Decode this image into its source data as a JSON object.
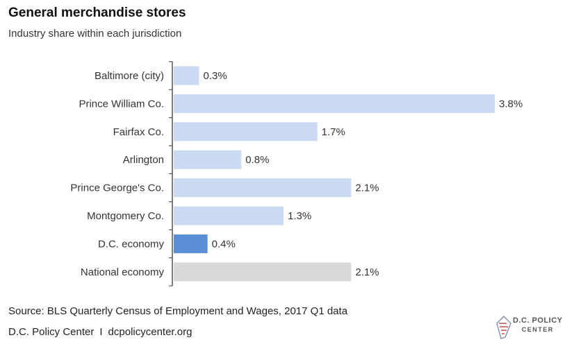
{
  "header": {
    "title": "General merchandise stores",
    "subtitle": "Industry share within each jurisdiction"
  },
  "chart_data": {
    "type": "bar",
    "orientation": "horizontal",
    "title": "General merchandise stores",
    "subtitle": "Industry share within each jurisdiction",
    "xlabel": "",
    "ylabel": "",
    "xlim": [
      0,
      3.8
    ],
    "grid": false,
    "categories": [
      "Baltimore (city)",
      "Prince William Co.",
      "Fairfax Co.",
      "Arlington",
      "Prince George's Co.",
      "Montgomery Co.",
      "D.C. economy",
      "National economy"
    ],
    "values": [
      0.3,
      3.8,
      1.7,
      0.8,
      2.1,
      1.3,
      0.4,
      2.1
    ],
    "value_labels": [
      "0.3%",
      "3.8%",
      "1.7%",
      "0.8%",
      "2.1%",
      "1.3%",
      "0.4%",
      "2.1%"
    ],
    "bar_colors": [
      "#c9daf2",
      "#c9daf2",
      "#c9daf2",
      "#c9daf2",
      "#c9daf2",
      "#c9daf2",
      "#5a8fd8",
      "#d9d9d9"
    ]
  },
  "footer": {
    "source": "Source: BLS Quarterly Census of Employment and Wages, 2017 Q1 data",
    "org": "D.C. Policy Center",
    "separator": "I",
    "url": "dcpolicycenter.org",
    "logo_line1": "D.C. POLICY",
    "logo_line2": "CENTER"
  }
}
